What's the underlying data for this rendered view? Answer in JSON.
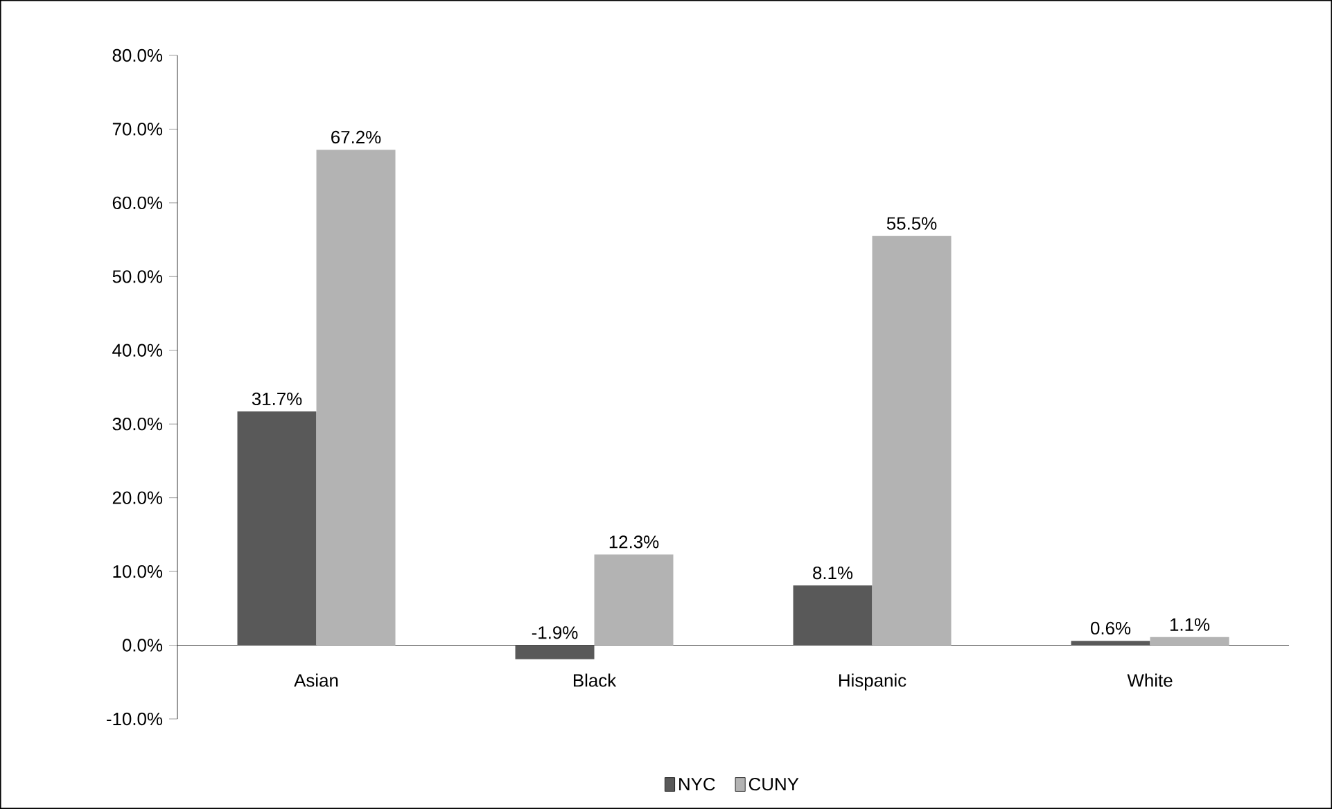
{
  "chart_data": {
    "type": "bar",
    "categories": [
      "Asian",
      "Black",
      "Hispanic",
      "White"
    ],
    "series": [
      {
        "name": "NYC",
        "color": "#595959",
        "values": [
          31.7,
          -1.9,
          8.1,
          0.6
        ],
        "value_labels": [
          "31.7%",
          "-1.9%",
          "8.1%",
          "0.6%"
        ]
      },
      {
        "name": "CUNY",
        "color": "#b3b3b3",
        "values": [
          67.2,
          12.3,
          55.5,
          1.1
        ],
        "value_labels": [
          "67.2%",
          "12.3%",
          "55.5%",
          "1.1%"
        ]
      }
    ],
    "ylim": [
      -10,
      80
    ],
    "yticks": [
      {
        "value": -10,
        "label": "-10.0%"
      },
      {
        "value": 0,
        "label": "0.0%"
      },
      {
        "value": 10,
        "label": "10.0%"
      },
      {
        "value": 20,
        "label": "20.0%"
      },
      {
        "value": 30,
        "label": "30.0%"
      },
      {
        "value": 40,
        "label": "40.0%"
      },
      {
        "value": 50,
        "label": "50.0%"
      },
      {
        "value": 60,
        "label": "60.0%"
      },
      {
        "value": 70,
        "label": "70.0%"
      },
      {
        "value": 80,
        "label": "80.0%"
      }
    ],
    "grid": false,
    "legend": "bottom"
  }
}
